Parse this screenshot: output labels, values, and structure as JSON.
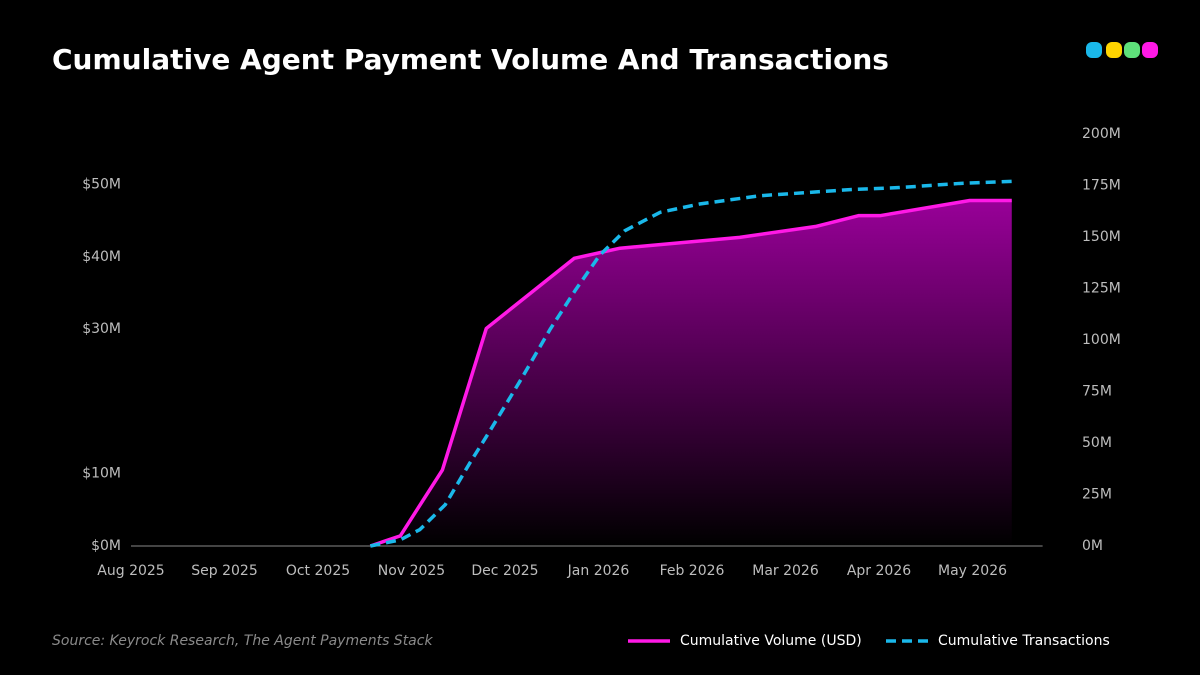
{
  "chart_data": {
    "type": "line",
    "title": "Cumulative Agent Payment Volume And Transactions",
    "source": "Source: Keyrock Research, The Agent Payments Stack",
    "xlim": [
      0,
      9.75
    ],
    "xticks": [
      {
        "value": 0,
        "label": "Aug 2025"
      },
      {
        "value": 1,
        "label": "Sep 2025"
      },
      {
        "value": 2,
        "label": "Oct 2025"
      },
      {
        "value": 3,
        "label": "Nov 2025"
      },
      {
        "value": 4,
        "label": "Dec 2025"
      },
      {
        "value": 5,
        "label": "Jan 2026"
      },
      {
        "value": 6,
        "label": "Feb 2026"
      },
      {
        "value": 7,
        "label": "Mar 2026"
      },
      {
        "value": 8,
        "label": "Apr 2026"
      },
      {
        "value": 9,
        "label": "May 2026"
      }
    ],
    "ylim": [
      0,
      57
    ],
    "yticks": [
      {
        "value": 0,
        "label": "$0M"
      },
      {
        "value": 10,
        "label": "$10M"
      },
      {
        "value": 30,
        "label": "$30M"
      },
      {
        "value": 40,
        "label": "$40M"
      },
      {
        "value": 50,
        "label": "$50M"
      }
    ],
    "y2lim": [
      0,
      200
    ],
    "y2ticks": [
      {
        "value": 0,
        "label": "0M"
      },
      {
        "value": 25,
        "label": "25M"
      },
      {
        "value": 50,
        "label": "50M"
      },
      {
        "value": 75,
        "label": "75M"
      },
      {
        "value": 100,
        "label": "100M"
      },
      {
        "value": 125,
        "label": "125M"
      },
      {
        "value": 150,
        "label": "150M"
      },
      {
        "value": 175,
        "label": "175M"
      },
      {
        "value": 200,
        "label": "200M"
      }
    ],
    "series": [
      {
        "name": "Cumulative Volume (USD)",
        "color": "#ff19e6",
        "dashed": false,
        "area": true,
        "x": [
          2.56,
          2.88,
          3.33,
          3.8,
          4.74,
          5.23,
          6.51,
          7.32,
          7.78,
          8.01,
          8.97,
          9.42
        ],
        "values": [
          0,
          1.4,
          10.5,
          30.1,
          39.8,
          41.2,
          42.7,
          44.2,
          45.7,
          45.7,
          47.8,
          47.8
        ]
      },
      {
        "name": "Cumulative Transactions",
        "color": "#1ab8ea",
        "dashed": true,
        "area": false,
        "axis": "y2",
        "x": [
          2.56,
          2.88,
          3.09,
          3.36,
          3.62,
          3.84,
          4.16,
          4.48,
          4.75,
          5.01,
          5.28,
          5.66,
          6.08,
          6.72,
          7.69,
          8.22,
          8.86,
          9.42
        ],
        "values": [
          0,
          3,
          8,
          20,
          40,
          56,
          80,
          105,
          124,
          141,
          153,
          162,
          166,
          170,
          173,
          174,
          176,
          177
        ]
      }
    ]
  }
}
